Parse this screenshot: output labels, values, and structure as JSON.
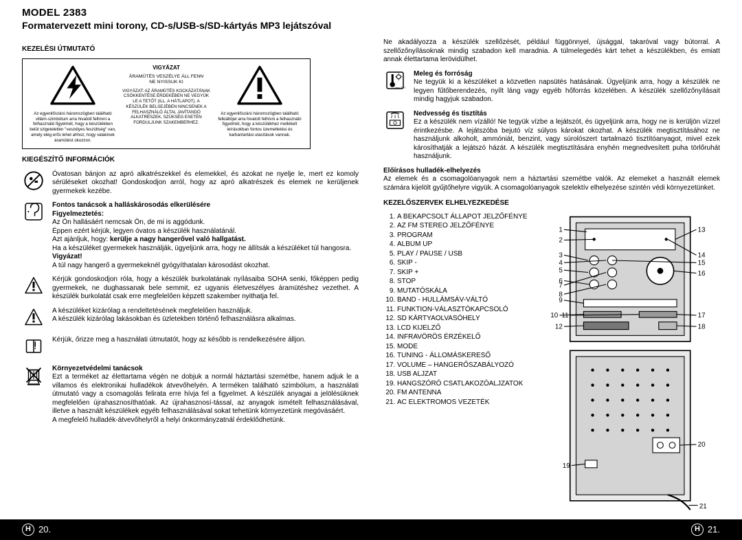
{
  "header": {
    "model_label": "MODEL",
    "model_number": "2383",
    "subtitle": "Formatervezett mini torony, CD-s/USB-s/SD-kártyás MP3 lejátszóval"
  },
  "left": {
    "manual_label": "KEZELÉSI ÚTMUTATÓ",
    "warnbox": {
      "center_title": "VIGYÁZAT",
      "center_line1": "ÁRAMÜTÉS VESZÉLYE ÁLL FENN\nNE NYISSUK KI",
      "left_text": "Az egyenlőszárú háromszögben található villám-szimbólum arra hivatott felhívni a felhasználó figyelmét, hogy a készülékben belül szigeteletlen \"veszélyes feszültség\" van, amely elég erős lehet ahhoz, hogy valakinek áramütést okozzon.",
      "center_text": "VIGYÁZAT: AZ ÁRAMÜTÉS KOCKÁZATÁNAK CSÖKKENTÉSE ÉRDEKÉBEN NE VEGYÜK LE A TETŐT (ILL. A HÁTLAPOT). A KÉSZÜLÉK BELSEJÉBEN NINCSENEK A FELHASZNÁLÓ ÁLTAL JAVÍTANDÓ ALKATRÉSZEK, SZÜKSÉG ESETÉN FORDULJUNK SZAKEMBERHEZ.",
      "right_text": "Az egyenlőszárú háromszögben található felkiáltójel arra hivatott felhívni a felhasználó figyelmét, hogy a készülékhez mellékelt leírásokban fontos üzemeltetési és karbantartási utasítások vannak."
    },
    "extra_info_label": "KIEGÉSZÍTŐ INFORMÁCIÓK",
    "rows": {
      "smallparts": "Óvatosan bánjon az apró alkatrészekkel és elemekkel, és azokat ne nyelje le, mert ez komoly sérüléseket okozhat! Gondoskodjon arról, hogy az apró alkatrészek és elemek ne kerüljenek gyermekek kezébe.",
      "hearing_head": "Fontos tanácsok a halláskárosodás elkerülésére",
      "hearing_warn_head": "Figyelmeztetés:",
      "hearing_body1": "Az Ön hallásáért nemcsak Ön, de mi is aggódunk.\nÉppen ezért kérjük, legyen óvatos a készülék használatánál.",
      "hearing_body2_pre": "Azt ajánljuk, hogy: ",
      "hearing_body2_em": "kerülje a nagy hangerővel való hallgatást.",
      "hearing_body3": "Ha a készüléket gyermekek használják, ügyeljünk arra, hogy ne állítsák a készüléket túl hangosra.",
      "hearing_vigy": "Vigyázat!",
      "hearing_body4": "A túl nagy hangerő a gyermekeknél gyógyíthatalan károsodást okozhat.",
      "shock": "Kérjük gondoskodjon róla, hogy a készülék burkolatának nyílásaiba SOHA senki, főképpen pedig gyermekek, ne dughassanak bele semmit, ez ugyanis életveszélyes áramütéshez vezethet. A készülék burkolatát csak erre megfelelően képzett szakember nyithatja fel.",
      "intended": "A készüléket kizárólag a rendeltetésének megfelelően használjuk.\nA készülék kizárólag lakásokban és üzletekben történő felhasználásra alkalmas.",
      "manual_keep": "Kérjük, őrizze meg a használati útmutatót, hogy az később is rendelkezésére álljon.",
      "env_head": "Környezetvédelmi tanácsok",
      "env_body": "Ezt a terméket az élettartama végén ne dobjuk a normál háztartási szemétbe, hanem adjuk le a villamos és elektronikai hulladékok átvevőhelyén. A terméken található szimbólum, a használati útmutató vagy a csomagolás felirata erre hívja fel a figyelmet. A készülék anyagai a jelölésüknek megfelelően újrahasznosíthatóak. Az újrahasznosí-tással, az anyagok ismételt felhasználásával, illetve a használt készülékek egyéb felhasználásával sokat tehetünk környezetünk megóvásáért.\nA megfelelő hulladék-átvevőhelyről a helyi önkormányzatnál érdeklődhetünk."
    }
  },
  "right": {
    "vent": "Ne akadályozza a készülék szellőzését, például függönnyel, újsággal, takaróval vagy bútorral. A szellőzőnyílásoknak mindig szabadon kell maradnia. A túlmelegedés kárt tehet a készülékben, és emiatt annak élettartama lerövidülhet.",
    "heat_head": "Meleg és forróság",
    "heat_body": "Ne tegyük ki a készüléket a közvetlen napsütés hatásának. Ügyeljünk arra, hogy a készülék ne legyen fűtőberendezés, nyílt láng vagy egyéb hőforrás közelében. A készülék szellőzőnyílásait mindig hagyjuk szabadon.",
    "moist_head": "Nedvesség és tisztítás",
    "moist_body": "Ez a készülék nem vízálló! Ne tegyük vízbe a lejátszót, és ügyeljünk arra, hogy ne is kerüljön vízzel érintkezésbe. A lejátszóba bejutó víz súlyos károkat okozhat. A készülék megtisztításához ne használjunk alkoholt, ammóniát, benzint, vagy súrolószert tartalmazó tisztítóanyagot, mivel ezek károsíthatják a lejátszó házát. A készülék megtisztítására enyhén megnedvesített puha törlőruhát használjunk.",
    "waste_head": "Előírásos hulladék-elhelyezés",
    "waste_body": "Az elemek és a csomagolóanyagok nem a háztartási szemétbe valók. Az elemeket a használt elemek számára kijelölt gyűjtőhelyre vigyük. A csomagolóanyagok szelektív elhelyezése szintén védi környezetünket.",
    "controls_label": "KEZELŐSZERVEK ELHELYEZKEDÉSE",
    "controls": {
      "items": [
        "A BEKAPCSOLT ÁLLAPOT JELZŐFÉNYE",
        "AZ FM STEREO JELZŐFÉNYE",
        "PROGRAM",
        "ALBUM UP",
        "PLAY / PAUSE / USB",
        "SKIP -",
        "SKIP +",
        "STOP",
        "MUTATÓSKÁLA",
        "BAND - HULLÁMSÁV-VÁLTÓ",
        "FUNKTION-VÁLASZTÓKAPCSOLÓ",
        "SD KÁRTYAOLVASÓHELY",
        "LCD KIJELZŐ",
        "INFRAVÖRÖS ÉRZÉKELŐ",
        "MODE",
        "TUNING - ÁLLOMÁSKERESŐ",
        "VOLUME – HANGERŐSZABÁLYOZÓ",
        "USB ALJZAT",
        "HANGSZÓRÓ CSATLAKOZÓALJZATOK",
        "FM ANTENNA",
        "AC ELEKTROMOS VEZETÉK"
      ]
    }
  },
  "footer": {
    "mark": "H",
    "left_page": "20.",
    "right_page": "21."
  }
}
